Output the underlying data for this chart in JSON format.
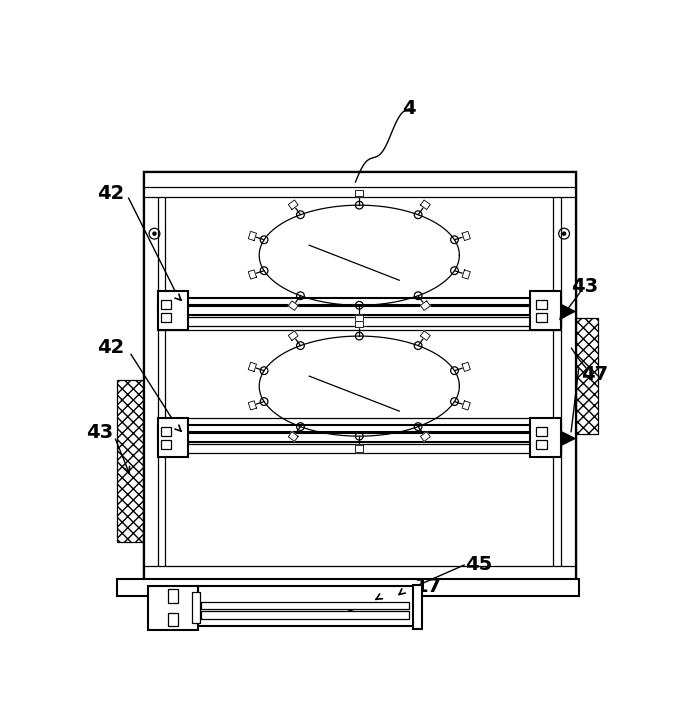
{
  "bg_color": "#ffffff",
  "line_color": "#000000",
  "fig_width": 6.74,
  "fig_height": 7.28,
  "dpi": 100
}
